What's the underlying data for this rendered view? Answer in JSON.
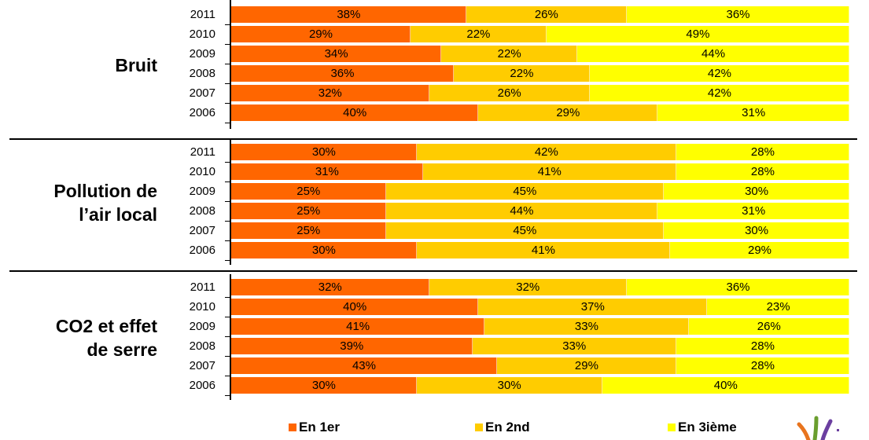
{
  "chart_data": [
    {
      "type": "bar",
      "orientation": "horizontal-stacked",
      "group_title_lines": [
        "Bruit"
      ],
      "categories": [
        "2011",
        "2010",
        "2009",
        "2008",
        "2007",
        "2006"
      ],
      "series": [
        {
          "name": "En 1er",
          "values": [
            38,
            29,
            34,
            36,
            32,
            40
          ],
          "labels": [
            "38%",
            "29%",
            "34%",
            "36%",
            "32%",
            "40%"
          ]
        },
        {
          "name": "En 2nd",
          "values": [
            26,
            22,
            22,
            22,
            26,
            29
          ],
          "labels": [
            "26%",
            "22%",
            "22%",
            "22%",
            "26%",
            "29%"
          ]
        },
        {
          "name": "En 3ième",
          "values": [
            36,
            49,
            44,
            42,
            42,
            31
          ],
          "labels": [
            "36%",
            "49%",
            "44%",
            "42%",
            "42%",
            "31%"
          ]
        }
      ],
      "xlim": [
        0,
        100
      ]
    },
    {
      "type": "bar",
      "orientation": "horizontal-stacked",
      "group_title_lines": [
        "Pollution de",
        "l’air local"
      ],
      "categories": [
        "2011",
        "2010",
        "2009",
        "2008",
        "2007",
        "2006"
      ],
      "series": [
        {
          "name": "En 1er",
          "values": [
            30,
            31,
            25,
            25,
            25,
            30
          ],
          "labels": [
            "30%",
            "31%",
            "25%",
            "25%",
            "25%",
            "30%"
          ]
        },
        {
          "name": "En 2nd",
          "values": [
            42,
            41,
            45,
            44,
            45,
            41
          ],
          "labels": [
            "42%",
            "41%",
            "45%",
            "44%",
            "45%",
            "41%"
          ]
        },
        {
          "name": "En 3ième",
          "values": [
            28,
            28,
            30,
            31,
            30,
            29
          ],
          "labels": [
            "28%",
            "28%",
            "30%",
            "31%",
            "30%",
            "29%"
          ]
        }
      ],
      "xlim": [
        0,
        100
      ]
    },
    {
      "type": "bar",
      "orientation": "horizontal-stacked",
      "group_title_lines": [
        "CO2 et effet",
        "de serre"
      ],
      "categories": [
        "2011",
        "2010",
        "2009",
        "2008",
        "2007",
        "2006"
      ],
      "series": [
        {
          "name": "En 1er",
          "values": [
            32,
            40,
            41,
            39,
            43,
            30
          ],
          "labels": [
            "32%",
            "40%",
            "41%",
            "39%",
            "43%",
            "30%"
          ]
        },
        {
          "name": "En 2nd",
          "values": [
            32,
            37,
            33,
            33,
            29,
            30
          ],
          "labels": [
            "32%",
            "37%",
            "33%",
            "33%",
            "29%",
            "30%"
          ]
        },
        {
          "name": "En 3ième",
          "values": [
            36,
            23,
            26,
            28,
            28,
            40
          ],
          "labels": [
            "36%",
            "23%",
            "26%",
            "28%",
            "28%",
            "40%"
          ]
        }
      ],
      "xlim": [
        0,
        100
      ]
    }
  ],
  "legend": [
    {
      "label": "En 1er",
      "color": "#FF6600"
    },
    {
      "label": "En 2nd",
      "color": "#FFCC00"
    },
    {
      "label": "En 3ième",
      "color": "#FFFF00"
    }
  ],
  "colors": {
    "series": [
      "#FF6600",
      "#FFCC00",
      "#FFFF00"
    ],
    "axis": "#000000"
  }
}
